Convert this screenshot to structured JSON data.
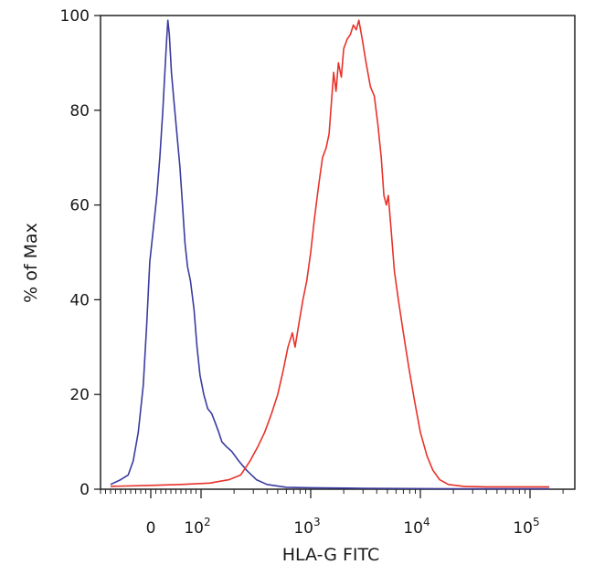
{
  "chart_data": {
    "type": "line",
    "title": "",
    "xlabel": "HLA-G  FITC",
    "ylabel": "% of Max",
    "x_scale": "biexponential",
    "x_ticks": [
      {
        "value": 0,
        "label": "0",
        "exp": ""
      },
      {
        "value": 100,
        "label": "10",
        "exp": "2"
      },
      {
        "value": 1000,
        "label": "10",
        "exp": "3"
      },
      {
        "value": 10000,
        "label": "10",
        "exp": "4"
      },
      {
        "value": 100000,
        "label": "10",
        "exp": "5"
      }
    ],
    "y_ticks": [
      0,
      20,
      40,
      60,
      80,
      100
    ],
    "ylim": [
      0,
      100
    ],
    "grid": false,
    "series": [
      {
        "color": "#3b3ba0",
        "points": [
          [
            -80,
            1
          ],
          [
            -60,
            2
          ],
          [
            -45,
            3
          ],
          [
            -35,
            6
          ],
          [
            -25,
            12
          ],
          [
            -15,
            22
          ],
          [
            -8,
            35
          ],
          [
            -2,
            48
          ],
          [
            5,
            55
          ],
          [
            12,
            62
          ],
          [
            18,
            70
          ],
          [
            24,
            80
          ],
          [
            28,
            88
          ],
          [
            31,
            94
          ],
          [
            34,
            99
          ],
          [
            37,
            96
          ],
          [
            41,
            88
          ],
          [
            46,
            82
          ],
          [
            52,
            75
          ],
          [
            58,
            68
          ],
          [
            63,
            60
          ],
          [
            68,
            52
          ],
          [
            73,
            47
          ],
          [
            79,
            44
          ],
          [
            86,
            38
          ],
          [
            92,
            30
          ],
          [
            98,
            24
          ],
          [
            106,
            20
          ],
          [
            115,
            17
          ],
          [
            125,
            16
          ],
          [
            135,
            14
          ],
          [
            145,
            12
          ],
          [
            155,
            10
          ],
          [
            170,
            9
          ],
          [
            190,
            8
          ],
          [
            220,
            6
          ],
          [
            260,
            4
          ],
          [
            320,
            2
          ],
          [
            400,
            1
          ],
          [
            600,
            0.4
          ],
          [
            1000,
            0.3
          ],
          [
            3000,
            0.2
          ],
          [
            20000,
            0.1
          ],
          [
            150000,
            0.1
          ]
        ]
      },
      {
        "color": "#e8322a",
        "points": [
          [
            -80,
            0.6
          ],
          [
            0,
            0.8
          ],
          [
            60,
            1
          ],
          [
            120,
            1.3
          ],
          [
            180,
            2
          ],
          [
            230,
            3
          ],
          [
            280,
            6
          ],
          [
            330,
            9
          ],
          [
            380,
            12
          ],
          [
            440,
            16
          ],
          [
            500,
            20
          ],
          [
            560,
            25
          ],
          [
            620,
            30
          ],
          [
            680,
            33
          ],
          [
            720,
            30
          ],
          [
            780,
            35
          ],
          [
            850,
            40
          ],
          [
            920,
            44
          ],
          [
            1000,
            50
          ],
          [
            1080,
            57
          ],
          [
            1180,
            64
          ],
          [
            1280,
            70
          ],
          [
            1380,
            72
          ],
          [
            1470,
            75
          ],
          [
            1550,
            82
          ],
          [
            1620,
            88
          ],
          [
            1700,
            84
          ],
          [
            1790,
            90
          ],
          [
            1900,
            87
          ],
          [
            2000,
            93
          ],
          [
            2150,
            95
          ],
          [
            2300,
            96
          ],
          [
            2450,
            98
          ],
          [
            2600,
            97
          ],
          [
            2750,
            99
          ],
          [
            2950,
            95
          ],
          [
            3200,
            90
          ],
          [
            3500,
            85
          ],
          [
            3800,
            83
          ],
          [
            4100,
            77
          ],
          [
            4400,
            70
          ],
          [
            4650,
            62
          ],
          [
            4900,
            60
          ],
          [
            5100,
            62
          ],
          [
            5400,
            55
          ],
          [
            5800,
            46
          ],
          [
            6300,
            40
          ],
          [
            7000,
            33
          ],
          [
            7800,
            26
          ],
          [
            8800,
            19
          ],
          [
            10000,
            12
          ],
          [
            11500,
            7
          ],
          [
            13000,
            4
          ],
          [
            15000,
            2
          ],
          [
            18000,
            1
          ],
          [
            25000,
            0.6
          ],
          [
            40000,
            0.5
          ],
          [
            150000,
            0.5
          ]
        ]
      }
    ]
  }
}
